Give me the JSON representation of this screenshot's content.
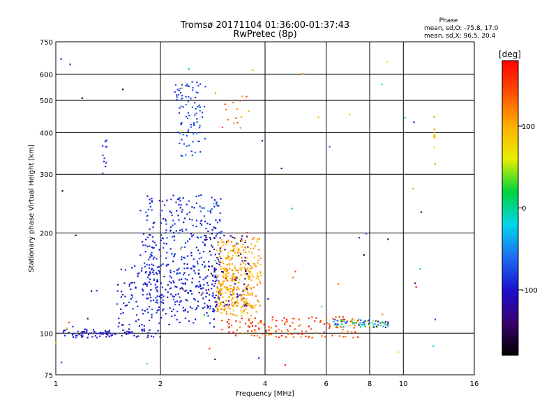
{
  "chart_data": {
    "type": "scatter",
    "title": "Tromsø 20171104 01:36:00-01:37:43",
    "subtitle": "RwPretec (8p)",
    "xlabel": "Frequency [MHz]",
    "ylabel": "Stationary phase Virtual Height [km]",
    "x_scale": "log",
    "y_scale": "log",
    "xlim": [
      1,
      16
    ],
    "ylim": [
      75,
      750
    ],
    "x_ticks": [
      1,
      2,
      4,
      6,
      8,
      10,
      16
    ],
    "y_ticks": [
      75,
      100,
      200,
      300,
      400,
      500,
      600,
      750
    ],
    "grid": true,
    "phase_stats": {
      "header": "Phase",
      "o_line": "mean, sd,O: -75.8, 17.0",
      "x_line": "mean, sd,X:  96.5, 20.4"
    },
    "colorbar": {
      "label": "[deg]",
      "ticks": [
        100,
        0,
        -100
      ],
      "range": [
        -180,
        180
      ],
      "colors": [
        "#000000",
        "#3a006e",
        "#1a10d0",
        "#1c6ef0",
        "#00d8ea",
        "#00d23c",
        "#e8f000",
        "#ffb000",
        "#ff5000",
        "#ff0000"
      ]
    },
    "clusters": [
      {
        "name": "Es trace",
        "x_range": [
          1.05,
          2.0
        ],
        "y_range": [
          97,
          103
        ],
        "phase_range": [
          -125,
          -80
        ],
        "count": 90
      },
      {
        "name": "F-layer O trace lower",
        "x_range": [
          1.5,
          2.9
        ],
        "y_range": [
          104,
          160
        ],
        "phase_range": [
          -115,
          -75
        ],
        "count": 160
      },
      {
        "name": "F-layer O cloud",
        "x_range": [
          1.75,
          3.0
        ],
        "y_range": [
          115,
          260
        ],
        "phase_range": [
          -105,
          -70
        ],
        "count": 380
      },
      {
        "name": "F-layer O dark",
        "x_range": [
          2.7,
          3.6
        ],
        "y_range": [
          120,
          200
        ],
        "phase_range": [
          -140,
          -110
        ],
        "count": 90
      },
      {
        "name": "F-layer X cloud",
        "x_range": [
          2.9,
          3.9
        ],
        "y_range": [
          115,
          195
        ],
        "phase_range": [
          80,
          125
        ],
        "count": 260
      },
      {
        "name": "F-layer X trace",
        "x_range": [
          2.9,
          3.7
        ],
        "y_range": [
          112,
          160
        ],
        "phase_range": [
          95,
          120
        ],
        "count": 80
      },
      {
        "name": "upper O trace",
        "x_range": [
          2.2,
          2.7
        ],
        "y_range": [
          340,
          570
        ],
        "phase_range": [
          -90,
          -60
        ],
        "count": 90
      },
      {
        "name": "upper X points",
        "x_range": [
          3.0,
          3.6
        ],
        "y_range": [
          410,
          520
        ],
        "phase_range": [
          100,
          150
        ],
        "count": 15
      },
      {
        "name": "E-region X trace",
        "x_range": [
          3.0,
          7.4
        ],
        "y_range": [
          97,
          112
        ],
        "phase_range": [
          110,
          175
        ],
        "count": 150
      },
      {
        "name": "E-region O trace",
        "x_range": [
          6.3,
          9.1
        ],
        "y_range": [
          104,
          110
        ],
        "phase_range": [
          -140,
          90
        ],
        "count": 80
      },
      {
        "name": "column 1.38 MHz",
        "x_range": [
          1.36,
          1.4
        ],
        "y_range": [
          300,
          380
        ],
        "phase_range": [
          -100,
          -70
        ],
        "count": 12
      },
      {
        "name": "column 12.3 MHz",
        "x_range": [
          12.25,
          12.35
        ],
        "y_range": [
          320,
          450
        ],
        "phase_range": [
          20,
          110
        ],
        "count": 12
      },
      {
        "name": "scattered",
        "x_range": [
          1.0,
          13.0
        ],
        "y_range": [
          80,
          700
        ],
        "phase_range": [
          -180,
          180
        ],
        "count": 70
      }
    ]
  }
}
